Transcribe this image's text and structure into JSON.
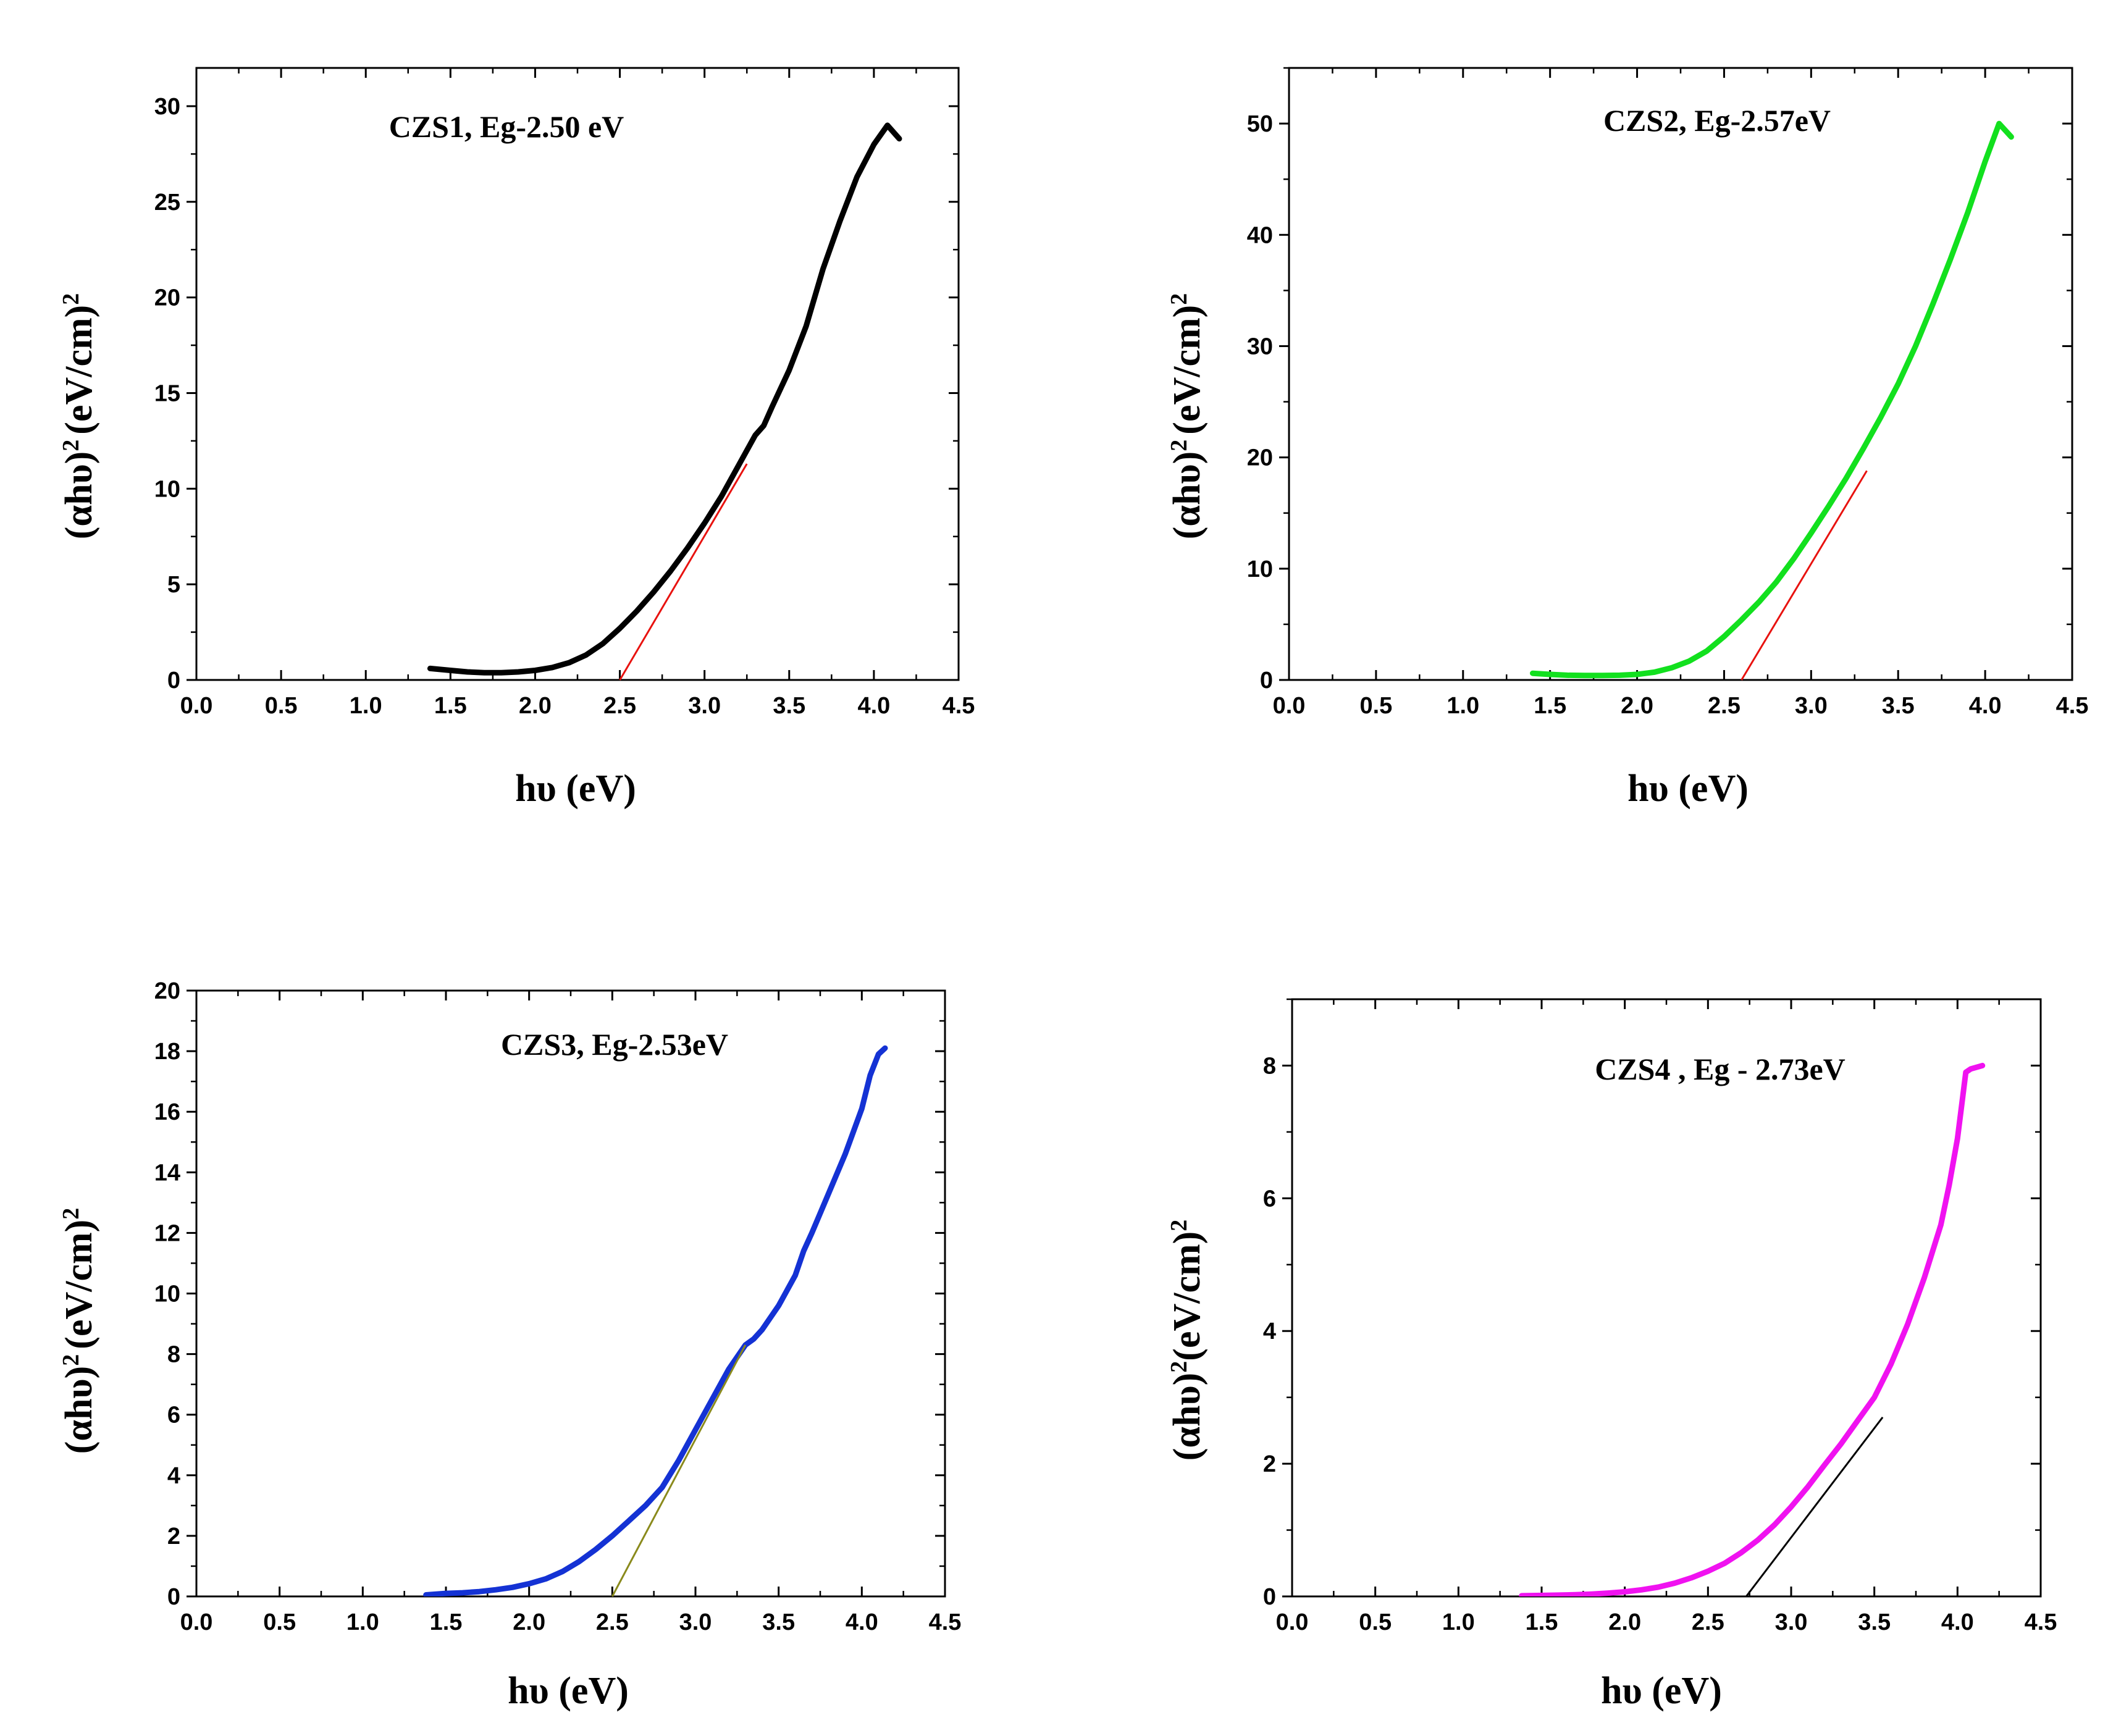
{
  "chart_data": [
    {
      "type": "line",
      "title": "CZS1, Eg-2.50 eV",
      "xlabel": "hυ (eV)",
      "ylabel": "(αhυ)² (eV/cm)²",
      "ylabel_main": "(αhυ)",
      "ylabel_sup": "2",
      "ylabel_unit": "(eV/cm)",
      "ylabel_unit_sup": "2",
      "xlim": [
        0.0,
        4.5
      ],
      "ylim": [
        0,
        32
      ],
      "xticks": [
        "0.0",
        "0.5",
        "1.0",
        "1.5",
        "2.0",
        "2.5",
        "3.0",
        "3.5",
        "4.0",
        "4.5"
      ],
      "yticks": [
        "0",
        "5",
        "10",
        "15",
        "20",
        "25",
        "30"
      ],
      "grid": false,
      "series": [
        {
          "name": "CZS1",
          "color": "#000000",
          "x": [
            1.38,
            1.5,
            1.6,
            1.7,
            1.8,
            1.9,
            2.0,
            2.1,
            2.2,
            2.3,
            2.4,
            2.5,
            2.6,
            2.7,
            2.8,
            2.9,
            3.0,
            3.1,
            3.2,
            3.3,
            3.35,
            3.4,
            3.5,
            3.6,
            3.7,
            3.8,
            3.9,
            4.0,
            4.08,
            4.15
          ],
          "y": [
            0.6,
            0.5,
            0.42,
            0.38,
            0.38,
            0.42,
            0.5,
            0.65,
            0.9,
            1.3,
            1.9,
            2.7,
            3.6,
            4.6,
            5.7,
            6.9,
            8.2,
            9.6,
            11.2,
            12.8,
            13.3,
            14.3,
            16.2,
            18.5,
            21.5,
            24.0,
            26.3,
            28.0,
            29.0,
            28.3
          ]
        }
      ],
      "fit_line": {
        "x": [
          2.5,
          3.25
        ],
        "y": [
          0.0,
          11.3
        ],
        "color": "#e8120f"
      }
    },
    {
      "type": "line",
      "title": "CZS2, Eg-2.57eV",
      "xlabel": "hυ (eV)",
      "ylabel": "(αhυ)² (eV/cm)²",
      "ylabel_main": "(αhυ)",
      "ylabel_sup": "2",
      "ylabel_unit": "(eV/cm)",
      "ylabel_unit_sup": "2",
      "xlim": [
        0.0,
        4.5
      ],
      "ylim": [
        0,
        55
      ],
      "xticks": [
        "0.0",
        "0.5",
        "1.0",
        "1.5",
        "2.0",
        "2.5",
        "3.0",
        "3.5",
        "4.0",
        "4.5"
      ],
      "yticks": [
        "0",
        "10",
        "20",
        "30",
        "40",
        "50"
      ],
      "grid": false,
      "series": [
        {
          "name": "CZS2",
          "color": "#12e01e",
          "x": [
            1.4,
            1.5,
            1.6,
            1.7,
            1.8,
            1.9,
            2.0,
            2.1,
            2.2,
            2.3,
            2.4,
            2.5,
            2.6,
            2.7,
            2.8,
            2.9,
            3.0,
            3.1,
            3.2,
            3.3,
            3.4,
            3.5,
            3.6,
            3.7,
            3.8,
            3.9,
            4.0,
            4.08,
            4.15
          ],
          "y": [
            0.6,
            0.5,
            0.42,
            0.4,
            0.4,
            0.42,
            0.5,
            0.7,
            1.1,
            1.7,
            2.6,
            3.9,
            5.4,
            7.0,
            8.8,
            10.9,
            13.2,
            15.6,
            18.1,
            20.8,
            23.6,
            26.6,
            30.0,
            33.8,
            37.8,
            42.0,
            46.6,
            50.0,
            48.8
          ]
        }
      ],
      "fit_line": {
        "x": [
          2.6,
          3.32
        ],
        "y": [
          0.0,
          18.8
        ],
        "color": "#e8120f"
      }
    },
    {
      "type": "line",
      "title": "CZS3, Eg-2.53eV",
      "xlabel": "hυ (eV)",
      "ylabel": "(αhυ)² (eV/cm)²",
      "ylabel_main": "(αhυ)",
      "ylabel_sup": "2",
      "ylabel_unit": "(eV/cm)",
      "ylabel_unit_sup": "2",
      "xlim": [
        0.0,
        4.5
      ],
      "ylim": [
        0,
        20
      ],
      "xticks": [
        "0.0",
        "0.5",
        "1.0",
        "1.5",
        "2.0",
        "2.5",
        "3.0",
        "3.5",
        "4.0",
        "4.5"
      ],
      "yticks": [
        "0",
        "2",
        "4",
        "6",
        "8",
        "10",
        "12",
        "14",
        "16",
        "18",
        "20"
      ],
      "grid": false,
      "series": [
        {
          "name": "CZS3",
          "color": "#1432d4",
          "x": [
            1.38,
            1.5,
            1.6,
            1.7,
            1.8,
            1.9,
            2.0,
            2.1,
            2.2,
            2.3,
            2.4,
            2.5,
            2.6,
            2.7,
            2.8,
            2.9,
            3.0,
            3.1,
            3.2,
            3.3,
            3.35,
            3.4,
            3.5,
            3.6,
            3.65,
            3.7,
            3.8,
            3.9,
            4.0,
            4.05,
            4.1,
            4.14
          ],
          "y": [
            0.05,
            0.1,
            0.12,
            0.16,
            0.22,
            0.3,
            0.42,
            0.58,
            0.82,
            1.15,
            1.55,
            2.0,
            2.5,
            3.0,
            3.6,
            4.5,
            5.5,
            6.5,
            7.5,
            8.3,
            8.5,
            8.8,
            9.6,
            10.6,
            11.4,
            12.0,
            13.3,
            14.6,
            16.1,
            17.2,
            17.9,
            18.1
          ]
        }
      ],
      "fit_line": {
        "x": [
          2.5,
          3.3
        ],
        "y": [
          0.0,
          8.3
        ],
        "color": "#8a8a1c"
      }
    },
    {
      "type": "line",
      "title": "CZS4 , Eg - 2.73eV",
      "xlabel": "hυ (eV)",
      "ylabel": "(αhυ)²(eV/cm)²",
      "ylabel_main": "(αhυ)",
      "ylabel_sup": "2",
      "ylabel_unit": "(eV/cm)",
      "ylabel_unit_sup": "2",
      "xlim": [
        0.0,
        4.5
      ],
      "ylim": [
        0,
        9
      ],
      "xticks": [
        "0.0",
        "0.5",
        "1.0",
        "1.5",
        "2.0",
        "2.5",
        "3.0",
        "3.5",
        "4.0",
        "4.5"
      ],
      "yticks": [
        "0",
        "2",
        "4",
        "6",
        "8"
      ],
      "grid": false,
      "series": [
        {
          "name": "CZS4",
          "color": "#f012f0",
          "x": [
            1.38,
            1.5,
            1.6,
            1.7,
            1.8,
            1.9,
            2.0,
            2.1,
            2.2,
            2.3,
            2.4,
            2.5,
            2.6,
            2.7,
            2.8,
            2.9,
            3.0,
            3.1,
            3.2,
            3.3,
            3.4,
            3.5,
            3.6,
            3.7,
            3.8,
            3.9,
            3.95,
            4.0,
            4.05,
            4.08,
            4.15
          ],
          "y": [
            0.01,
            0.015,
            0.02,
            0.025,
            0.035,
            0.05,
            0.07,
            0.1,
            0.14,
            0.2,
            0.28,
            0.38,
            0.5,
            0.66,
            0.85,
            1.08,
            1.35,
            1.65,
            1.98,
            2.3,
            2.65,
            3.0,
            3.5,
            4.1,
            4.8,
            5.6,
            6.2,
            6.9,
            7.9,
            7.95,
            8.0
          ]
        }
      ],
      "fit_line": {
        "x": [
          2.73,
          3.55
        ],
        "y": [
          0.0,
          2.7
        ],
        "color": "#000000"
      }
    }
  ]
}
